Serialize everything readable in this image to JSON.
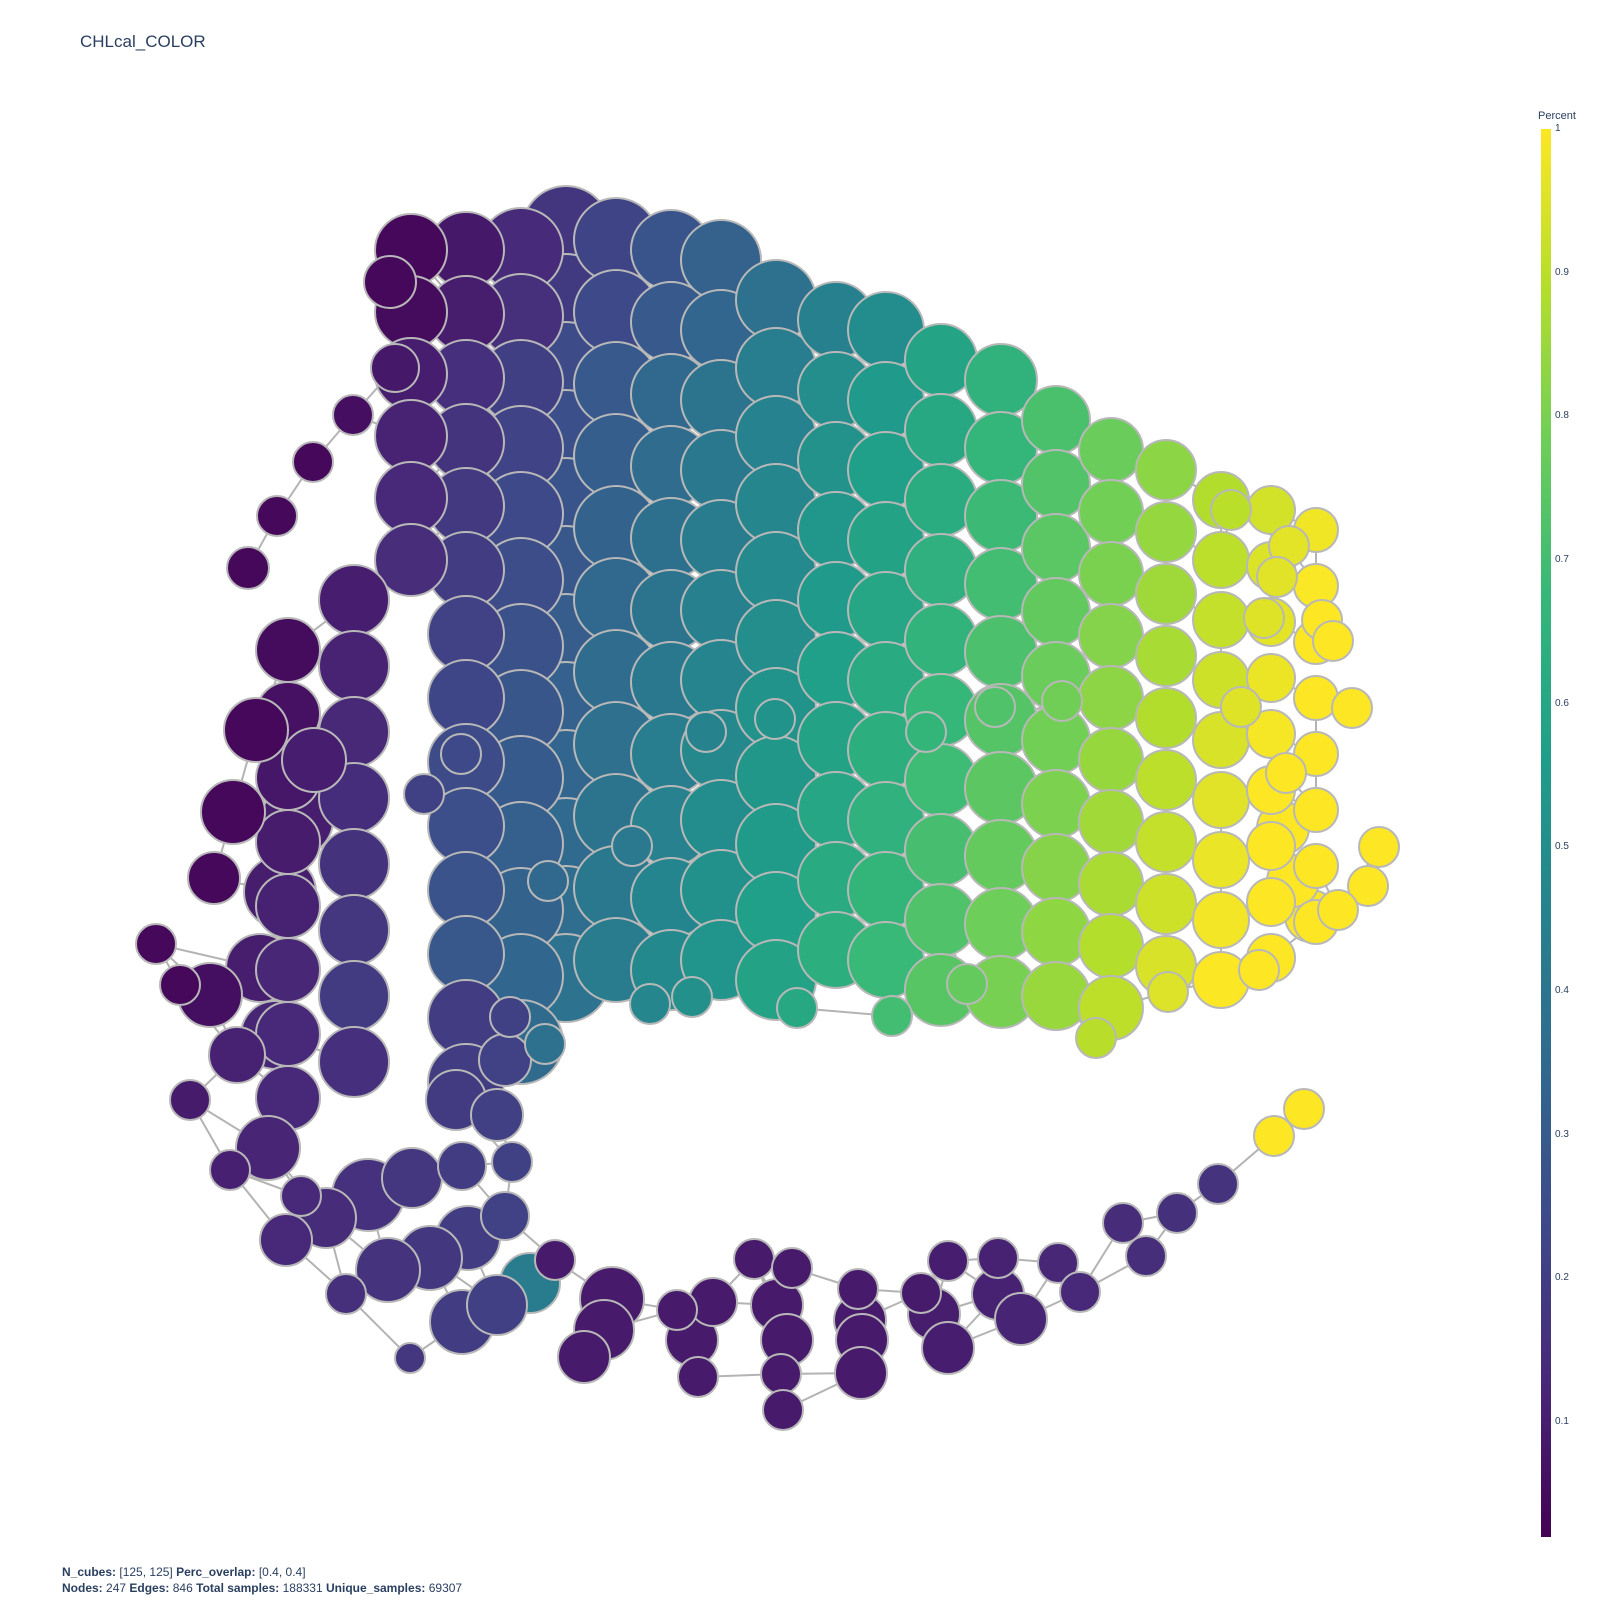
{
  "title": "CHLcal_COLOR",
  "colorbar": {
    "title": "Percent",
    "ticks": [
      "1",
      "0.9",
      "0.8",
      "0.7",
      "0.6",
      "0.5",
      "0.4",
      "0.3",
      "0.2",
      "0.1"
    ],
    "tick_values": [
      1,
      0.9,
      0.8,
      0.7,
      0.6,
      0.5,
      0.4,
      0.3,
      0.2,
      0.1
    ],
    "range": [
      0.02,
      1
    ],
    "colors": [
      "#440154",
      "#482878",
      "#3e4989",
      "#31688e",
      "#26828e",
      "#1f9e89",
      "#35b779",
      "#6ece58",
      "#b5de2b",
      "#fde725"
    ]
  },
  "footer": {
    "n_cubes_label": "N_cubes:",
    "n_cubes_value": "[125, 125]",
    "perc_overlap_label": "Perc_overlap:",
    "perc_overlap_value": "[0.4, 0.4]",
    "nodes_label": "Nodes:",
    "nodes_value": "247",
    "edges_label": "Edges:",
    "edges_value": "846",
    "total_samples_label": "Total samples:",
    "total_samples_value": "188331",
    "unique_samples_label": "Unique_samples:",
    "unique_samples_value": "69307"
  },
  "style": {
    "edge_color": "#b3b3b3",
    "node_outline": "#b8b8b8"
  }
}
